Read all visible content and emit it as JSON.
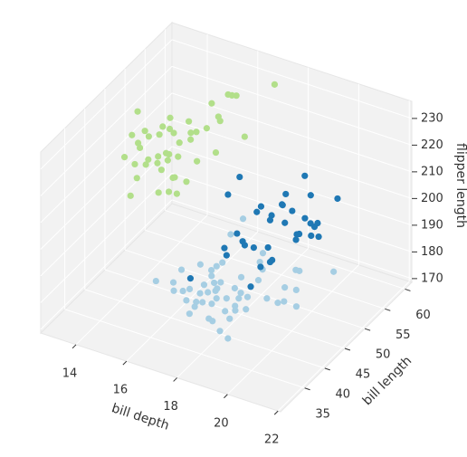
{
  "chart_data": {
    "type": "scatter3d",
    "xlabel": "bill depth",
    "ylabel": "bill length",
    "zlabel": "flipper length",
    "xlim": [
      12.6,
      22.1
    ],
    "ylim": [
      29,
      61.7
    ],
    "zlim": [
      168.6,
      236.4
    ],
    "xticks": [
      14,
      16,
      18,
      20,
      22
    ],
    "yticks": [
      35,
      40,
      45,
      50,
      55,
      60
    ],
    "zticks": [
      170,
      180,
      190,
      200,
      210,
      220,
      230
    ],
    "grid": true,
    "series": [
      {
        "color": "#a6cee3",
        "x": [
          18.7,
          17.4,
          18.0,
          19.3,
          20.6,
          17.8,
          19.6,
          18.1,
          20.2,
          17.1,
          17.3,
          17.6,
          21.2,
          21.1,
          17.8,
          19.0,
          20.7,
          18.4,
          21.5,
          18.3,
          18.7,
          19.2,
          18.1,
          17.2,
          18.9,
          18.6,
          17.9,
          18.6,
          18.9,
          16.7,
          18.1,
          17.8,
          18.9,
          17.0,
          21.1,
          20.0,
          18.5,
          19.3,
          18.2,
          18.0,
          17.9,
          17.0,
          18.5,
          17.9,
          19.5,
          16.9,
          16.6,
          19.4,
          17.5,
          20.0,
          18.0,
          16.1,
          19.0,
          17.2,
          18.8
        ],
        "y": [
          39.1,
          39.5,
          40.3,
          36.7,
          39.3,
          38.9,
          39.2,
          34.1,
          42.0,
          37.8,
          37.8,
          41.1,
          38.6,
          34.6,
          36.6,
          38.7,
          42.5,
          34.4,
          46.0,
          37.8,
          37.7,
          35.9,
          38.2,
          38.8,
          35.3,
          40.6,
          40.5,
          37.9,
          40.5,
          39.5,
          37.2,
          39.5,
          40.9,
          36.4,
          39.2,
          38.8,
          42.3,
          35.2,
          41.1,
          32.1,
          37.3,
          41.1,
          35.7,
          39.6,
          40.2,
          35.0,
          37.0,
          41.5,
          40.7,
          46.0,
          37.6,
          35.7,
          44.1,
          35.5,
          36.3
        ],
        "z": [
          181,
          186,
          195,
          193,
          190,
          181,
          195,
          193,
          190,
          186,
          180,
          182,
          191,
          198,
          185,
          195,
          197,
          184,
          194,
          174,
          180,
          189,
          185,
          180,
          187,
          183,
          187,
          172,
          180,
          178,
          178,
          188,
          184,
          195,
          196,
          190,
          210,
          197,
          205,
          188,
          188,
          190,
          202,
          186,
          200,
          192,
          185,
          195,
          190,
          190,
          194,
          189,
          196,
          189,
          190
        ]
      },
      {
        "color": "#1f78b4",
        "x": [
          17.9,
          19.5,
          19.2,
          18.7,
          19.8,
          17.8,
          18.2,
          18.2,
          18.9,
          19.9,
          17.8,
          20.0,
          17.1,
          18.5,
          19.0,
          16.6,
          18.3,
          18.7,
          19.5,
          18.7,
          18.4,
          19.0,
          17.3,
          18.8,
          17.9,
          19.6,
          19.0,
          20.7,
          18.3,
          17.3,
          19.4,
          16.4,
          18.1,
          19.6,
          18.9
        ],
        "y": [
          46.5,
          50.0,
          51.3,
          45.4,
          52.7,
          45.2,
          46.1,
          51.3,
          46.0,
          51.3,
          46.6,
          51.7,
          47.0,
          52.0,
          45.9,
          50.5,
          50.3,
          58.0,
          49.2,
          50.9,
          45.6,
          51.4,
          45.2,
          55.8,
          49.5,
          50.8,
          46.4,
          52.0,
          54.2,
          49.0,
          53.5,
          42.4,
          49.3,
          52.2,
          50.2
        ],
        "z": [
          192,
          196,
          193,
          188,
          197,
          198,
          178,
          197,
          195,
          198,
          193,
          194,
          185,
          201,
          190,
          201,
          197,
          181,
          195,
          203,
          194,
          201,
          191,
          207,
          200,
          201,
          190,
          210,
          201,
          212,
          205,
          181,
          203,
          197,
          198
        ]
      },
      {
        "color": "#b2df8a",
        "x": [
          13.2,
          16.3,
          14.5,
          15.2,
          13.5,
          14.6,
          15.3,
          13.4,
          15.4,
          13.7,
          16.1,
          13.7,
          14.6,
          14.6,
          15.7,
          13.5,
          15.2,
          14.5,
          15.1,
          14.3,
          14.5,
          14.5,
          15.8,
          13.1,
          15.1,
          14.3,
          15.0,
          14.3,
          15.3,
          14.2,
          14.5,
          17.0,
          15.9,
          16.0,
          15.7,
          16.8,
          16.2,
          15.0,
          14.2,
          15.2,
          14.8,
          16.4,
          15.9,
          13.8,
          13.9,
          16.5
        ],
        "y": [
          46.1,
          50.0,
          48.7,
          50.0,
          47.6,
          46.5,
          45.4,
          46.7,
          43.3,
          46.8,
          40.9,
          49.0,
          45.5,
          48.4,
          45.8,
          49.3,
          42.0,
          49.2,
          46.2,
          48.7,
          50.2,
          46.3,
          47.8,
          50.0,
          47.5,
          45.1,
          50.8,
          44.5,
          50.8,
          48.5,
          49.3,
          59.6,
          55.9,
          54.3,
          52.1,
          53.4,
          55.1,
          51.3,
          42.9,
          47.2,
          46.4,
          49.8,
          49.6,
          44.9,
          43.2,
          48.1
        ],
        "z": [
          211,
          230,
          210,
          218,
          215,
          210,
          211,
          219,
          209,
          215,
          214,
          216,
          214,
          213,
          210,
          217,
          210,
          221,
          209,
          222,
          218,
          215,
          215,
          222,
          215,
          215,
          223,
          214,
          220,
          219,
          225,
          230,
          228,
          231,
          230,
          219,
          230,
          218,
          211,
          221,
          217,
          229,
          225,
          212,
          203,
          220
        ]
      }
    ]
  }
}
